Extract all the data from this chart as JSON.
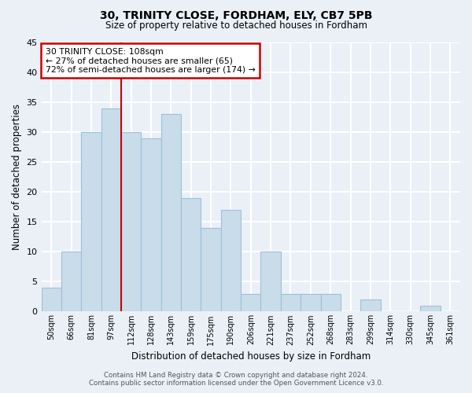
{
  "title1": "30, TRINITY CLOSE, FORDHAM, ELY, CB7 5PB",
  "title2": "Size of property relative to detached houses in Fordham",
  "xlabel": "Distribution of detached houses by size in Fordham",
  "ylabel": "Number of detached properties",
  "bin_labels": [
    "50sqm",
    "66sqm",
    "81sqm",
    "97sqm",
    "112sqm",
    "128sqm",
    "143sqm",
    "159sqm",
    "175sqm",
    "190sqm",
    "206sqm",
    "221sqm",
    "237sqm",
    "252sqm",
    "268sqm",
    "283sqm",
    "299sqm",
    "314sqm",
    "330sqm",
    "345sqm",
    "361sqm"
  ],
  "bar_heights": [
    4,
    10,
    30,
    34,
    30,
    29,
    33,
    19,
    14,
    17,
    3,
    10,
    3,
    3,
    3,
    0,
    2,
    0,
    0,
    1,
    0
  ],
  "bar_color": "#c8dcea",
  "bar_edge_color": "#a0c0d8",
  "highlight_line_index": 4,
  "highlight_line_color": "#cc0000",
  "ylim": [
    0,
    45
  ],
  "yticks": [
    0,
    5,
    10,
    15,
    20,
    25,
    30,
    35,
    40,
    45
  ],
  "annotation_title": "30 TRINITY CLOSE: 108sqm",
  "annotation_line1": "← 27% of detached houses are smaller (65)",
  "annotation_line2": "72% of semi-detached houses are larger (174) →",
  "annotation_box_color": "#ffffff",
  "annotation_box_edge": "#cc0000",
  "footer1": "Contains HM Land Registry data © Crown copyright and database right 2024.",
  "footer2": "Contains public sector information licensed under the Open Government Licence v3.0.",
  "background_color": "#eaf0f6",
  "grid_color": "#ffffff",
  "fig_width": 6.0,
  "fig_height": 5.0,
  "dpi": 100
}
